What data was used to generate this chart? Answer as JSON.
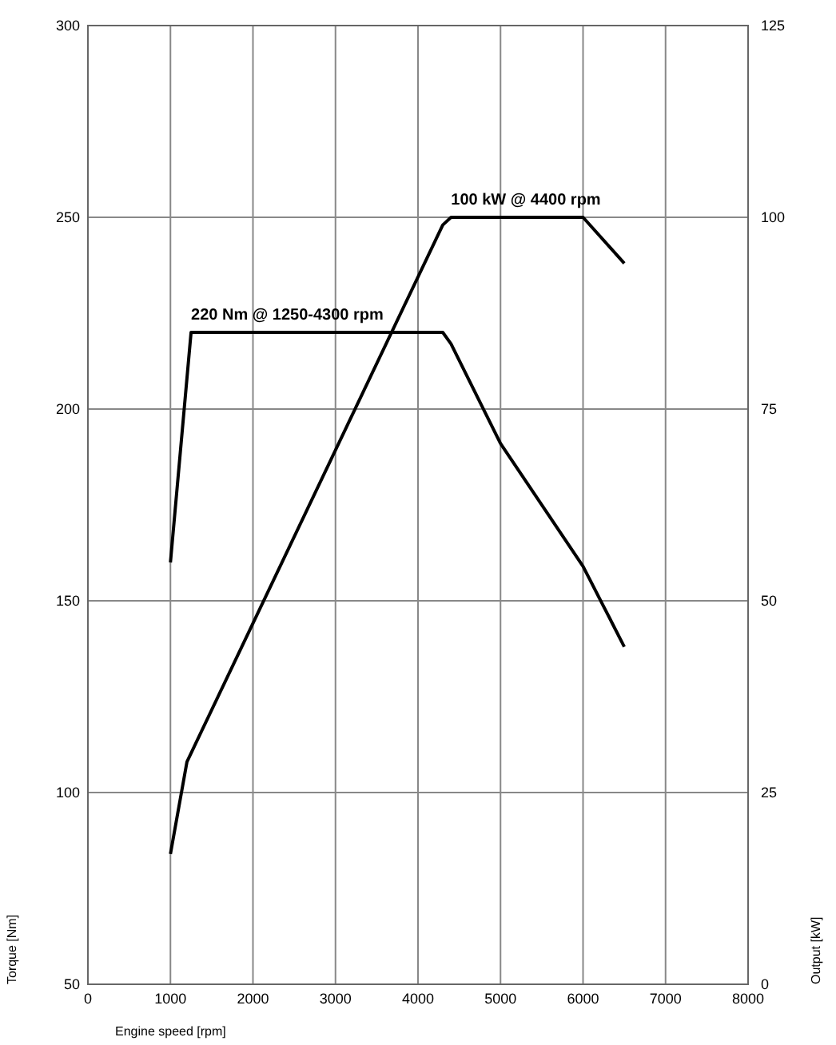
{
  "chart_data": {
    "type": "line",
    "xlabel": "Engine speed [rpm]",
    "ylabel": "Torque [Nm]",
    "y2label": "Output [kW]",
    "xlim": [
      0,
      8000
    ],
    "xticks": [
      0,
      1000,
      2000,
      3000,
      4000,
      5000,
      6000,
      7000,
      8000
    ],
    "ylim": [
      50,
      300
    ],
    "yticks": [
      50,
      100,
      150,
      200,
      250,
      300
    ],
    "y2lim": [
      0,
      125
    ],
    "y2ticks": [
      0,
      25,
      50,
      75,
      100,
      125
    ],
    "grid": true,
    "line_style": "solid",
    "series": [
      {
        "color": "#000000",
        "x": [
          1000,
          1250,
          4300,
          4400,
          5000,
          6000,
          6500
        ],
        "values": [
          160,
          220,
          220,
          217,
          191,
          159,
          138
        ]
      },
      {
        "color": "#000000",
        "axis": "y2",
        "x": [
          1000,
          1200,
          4300,
          4400,
          6000,
          6500
        ],
        "values": [
          17,
          29,
          99,
          100,
          100,
          94
        ]
      }
    ],
    "annotations": [
      {
        "text": "220 Nm @ 1250-4300 rpm",
        "x": 1250,
        "y": 220
      },
      {
        "text": "100 kW @ 4400 rpm",
        "x": 4400,
        "y": 250
      }
    ]
  }
}
